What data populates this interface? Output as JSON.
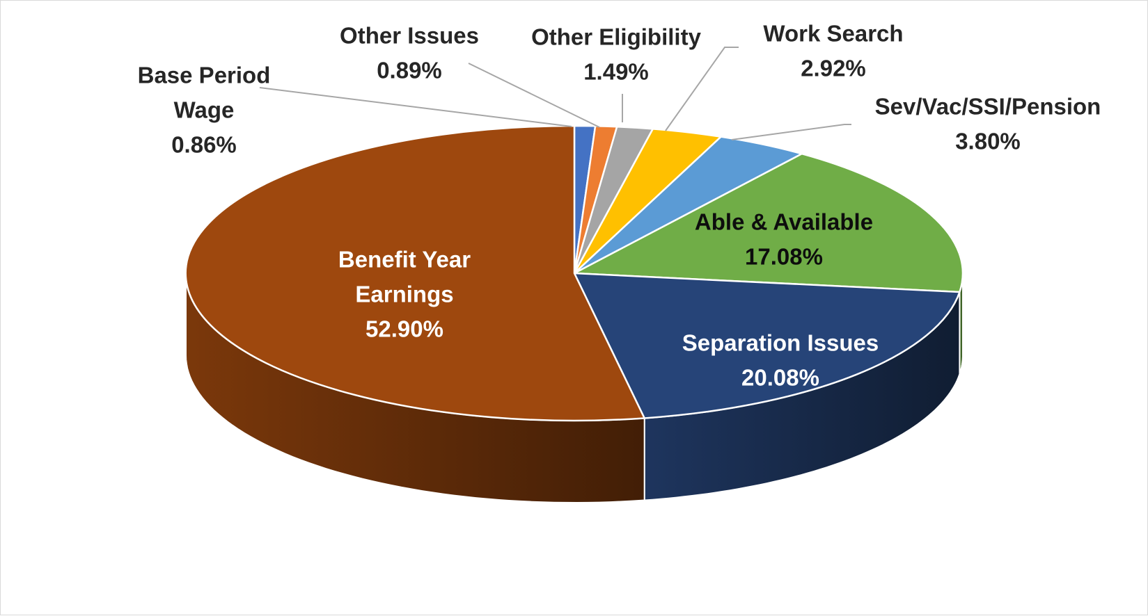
{
  "chart_data": {
    "type": "pie",
    "title": "",
    "style": "3d-exploded-none",
    "start_angle_deg": 0,
    "direction": "clockwise",
    "slices": [
      {
        "label": "Base Period Wage",
        "value": 0.86,
        "value_label": "0.86%",
        "color": "#4472c4",
        "label_lines": [
          "Base Period",
          "Wage",
          "0.86%"
        ]
      },
      {
        "label": "Other Issues",
        "value": 0.89,
        "value_label": "0.89%",
        "color": "#ed7d31",
        "label_lines": [
          "Other Issues",
          "0.89%"
        ]
      },
      {
        "label": "Other Eligibility",
        "value": 1.49,
        "value_label": "1.49%",
        "color": "#a5a5a5",
        "label_lines": [
          "Other Eligibility",
          "1.49%"
        ]
      },
      {
        "label": "Work Search",
        "value": 2.92,
        "value_label": "2.92%",
        "color": "#ffc000",
        "label_lines": [
          "Work Search",
          "2.92%"
        ]
      },
      {
        "label": "Sev/Vac/SSI/Pension",
        "value": 3.8,
        "value_label": "3.80%",
        "color": "#5b9bd5",
        "label_lines": [
          "Sev/Vac/SSI/Pension",
          "3.80%"
        ]
      },
      {
        "label": "Able & Available",
        "value": 17.08,
        "value_label": "17.08%",
        "color": "#70ad47",
        "label_lines": [
          "Able & Available",
          "17.08%"
        ]
      },
      {
        "label": "Separation Issues",
        "value": 20.08,
        "value_label": "20.08%",
        "color": "#264478",
        "label_lines": [
          "Separation Issues",
          "20.08%"
        ]
      },
      {
        "label": "Benefit Year Earnings",
        "value": 52.9,
        "value_label": "52.90%",
        "color": "#9e480e",
        "label_lines": [
          "Benefit Year",
          "Earnings",
          "52.90%"
        ]
      }
    ]
  }
}
